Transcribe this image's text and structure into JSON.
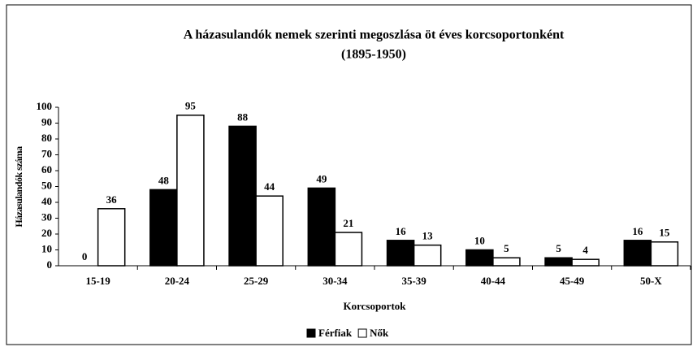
{
  "chart_data": {
    "type": "bar",
    "title": "A házasulandók nemek szerinti megoszlása öt éves korcsoportonként",
    "subtitle": "(1895-1950)",
    "x_label": "Korcsoportok",
    "y_label": "Házasulandók száma",
    "categories": [
      "15-19",
      "20-24",
      "25-29",
      "30-34",
      "35-39",
      "40-44",
      "45-49",
      "50-X"
    ],
    "series": [
      {
        "name": "Férfiak",
        "color": "#000000",
        "values": [
          0,
          48,
          88,
          49,
          16,
          10,
          5,
          16
        ]
      },
      {
        "name": "Nők",
        "color": "#ffffff",
        "values": [
          36,
          95,
          44,
          21,
          13,
          5,
          4,
          15
        ]
      }
    ],
    "ylim": [
      0,
      100
    ],
    "yticks": [
      0,
      10,
      20,
      30,
      40,
      50,
      60,
      70,
      80,
      90,
      100
    ],
    "grid": false,
    "legend": "bottom"
  }
}
